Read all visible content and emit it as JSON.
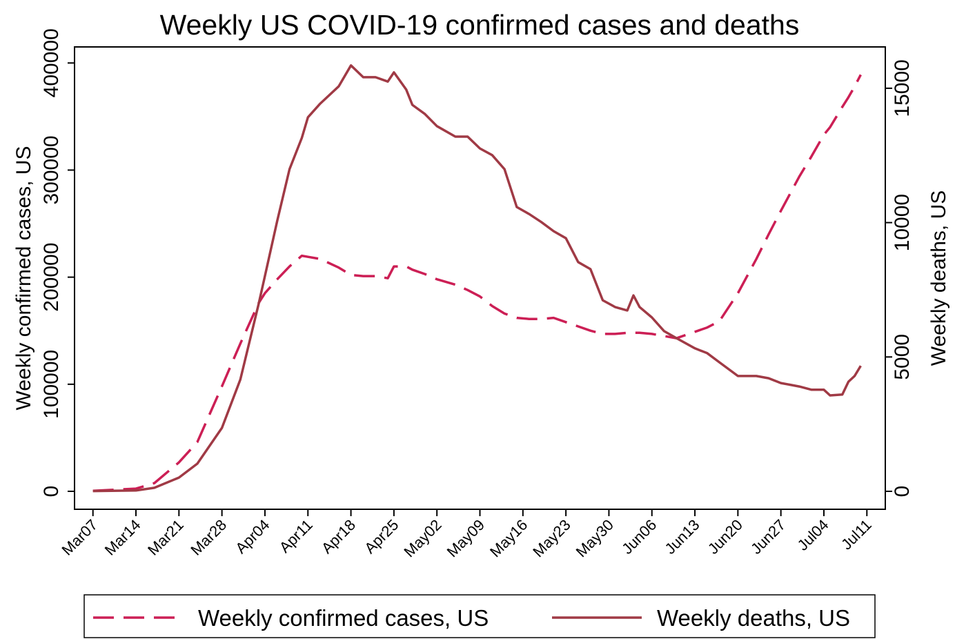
{
  "chart_data": {
    "type": "line",
    "title": "Weekly US COVID-19 confirmed cases and deaths",
    "y_label": "Weekly confirmed cases, US",
    "y2_label": "Weekly deaths, US",
    "x": [
      "Mar07",
      "Mar14",
      "Mar17",
      "Mar21",
      "Mar24",
      "Mar28",
      "Mar31",
      "Apr03",
      "Apr04",
      "Apr06",
      "Apr08",
      "Apr10",
      "Apr11",
      "Apr13",
      "Apr16",
      "Apr18",
      "Apr20",
      "Apr22",
      "Apr24",
      "Apr25",
      "Apr27",
      "Apr28",
      "Apr30",
      "May02",
      "May05",
      "May07",
      "May09",
      "May11",
      "May13",
      "May15",
      "May17",
      "May19",
      "May21",
      "May23",
      "May25",
      "May27",
      "May29",
      "May31",
      "Jun02",
      "Jun03",
      "Jun04",
      "Jun06",
      "Jun08",
      "Jun10",
      "Jun13",
      "Jun15",
      "Jun17",
      "Jun20",
      "Jun23",
      "Jun25",
      "Jun27",
      "Jun30",
      "Jul02",
      "Jul04",
      "Jul05",
      "Jul07",
      "Jul08",
      "Jul09",
      "Jul10"
    ],
    "xlim": [
      "Mar04",
      "Jul14"
    ],
    "xticks": [
      "Mar07",
      "Mar14",
      "Mar21",
      "Mar28",
      "Apr04",
      "Apr11",
      "Apr18",
      "Apr25",
      "May02",
      "May09",
      "May16",
      "May23",
      "May30",
      "Jun06",
      "Jun13",
      "Jun20",
      "Jun27",
      "Jul04",
      "Jul11"
    ],
    "ylim": [
      -16750,
      415000
    ],
    "yticks": [
      0,
      100000,
      200000,
      300000,
      400000
    ],
    "y2lim": [
      -668,
      16538
    ],
    "y2ticks": [
      0,
      5000,
      10000,
      15000
    ],
    "legend": "bottom",
    "series": [
      {
        "name": "Weekly confirmed cases, US",
        "color": "#cc1f55",
        "line_style": "dashed",
        "values": [
          500,
          2500,
          7700,
          27000,
          46000,
          98000,
          138000,
          176000,
          185000,
          198000,
          210000,
          220000,
          219000,
          217000,
          209000,
          202000,
          201000,
          201000,
          199000,
          210000,
          210000,
          207000,
          203000,
          198000,
          193000,
          188000,
          182000,
          173000,
          166000,
          162000,
          161000,
          161000,
          162000,
          158000,
          154000,
          150000,
          147000,
          147000,
          148000,
          148000,
          148000,
          147000,
          145000,
          143000,
          149000,
          153000,
          159000,
          185000,
          217000,
          240000,
          262000,
          294000,
          313000,
          333000,
          340000,
          359000,
          368000,
          378000,
          389000
        ]
      },
      {
        "name": "Weekly deaths, US",
        "color": "#a03a45",
        "line_style": "solid",
        "axis": "y2",
        "values": [
          10,
          30,
          130,
          510,
          1030,
          2360,
          4160,
          6990,
          8010,
          10070,
          11990,
          13150,
          13920,
          14430,
          15070,
          15850,
          15410,
          15410,
          15250,
          15590,
          14950,
          14380,
          14050,
          13590,
          13200,
          13200,
          12760,
          12510,
          11990,
          10580,
          10320,
          10020,
          9680,
          9420,
          8530,
          8270,
          7110,
          6860,
          6730,
          7290,
          6860,
          6470,
          5960,
          5700,
          5320,
          5140,
          4800,
          4290,
          4290,
          4210,
          4030,
          3900,
          3780,
          3780,
          3570,
          3600,
          4080,
          4290,
          4670
        ]
      }
    ]
  }
}
